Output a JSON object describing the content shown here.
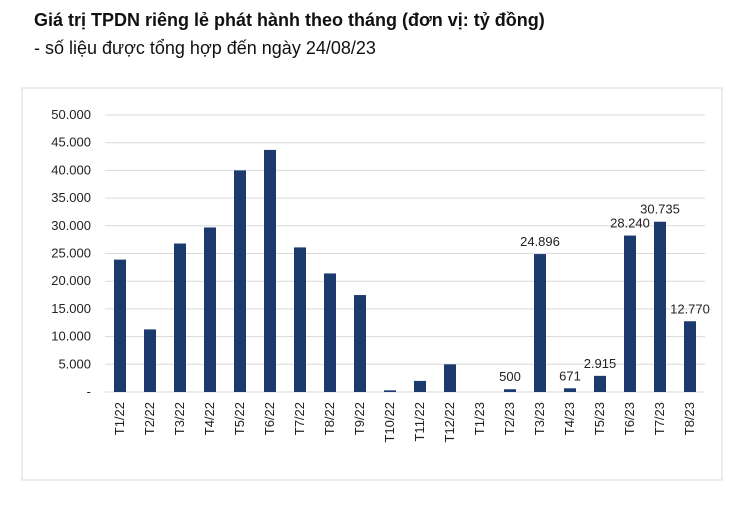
{
  "chart_data": {
    "type": "bar",
    "title": "Giá trị TPDN riêng lẻ phát hành theo tháng (đơn vị: tỷ đồng)",
    "subtitle": "- số liệu được tổng hợp đến ngày 24/08/23",
    "categories": [
      "T1/22",
      "T2/22",
      "T3/22",
      "T4/22",
      "T5/22",
      "T6/22",
      "T7/22",
      "T8/22",
      "T9/22",
      "T10/22",
      "T11/22",
      "T12/22",
      "T1/23",
      "T2/23",
      "T3/23",
      "T4/23",
      "T5/23",
      "T6/23",
      "T7/23",
      "T8/23"
    ],
    "values": [
      23900,
      11300,
      26800,
      29700,
      40000,
      43700,
      26100,
      21400,
      17500,
      300,
      2000,
      5000,
      0,
      500,
      24896,
      671,
      2915,
      28240,
      30735,
      12770
    ],
    "value_labels": [
      null,
      null,
      null,
      null,
      null,
      null,
      null,
      null,
      null,
      null,
      null,
      null,
      null,
      "500",
      "24.896",
      "671",
      "2.915",
      "28.240",
      "30.735",
      "12.770"
    ],
    "color": "#1c3a6e",
    "ylim": [
      0,
      50000
    ],
    "yticks": [
      {
        "value": 0,
        "label": "-"
      },
      {
        "value": 5000,
        "label": "5.000"
      },
      {
        "value": 10000,
        "label": "10.000"
      },
      {
        "value": 15000,
        "label": "15.000"
      },
      {
        "value": 20000,
        "label": "20.000"
      },
      {
        "value": 25000,
        "label": "25.000"
      },
      {
        "value": 30000,
        "label": "30.000"
      },
      {
        "value": 35000,
        "label": "35.000"
      },
      {
        "value": 40000,
        "label": "40.000"
      },
      {
        "value": 45000,
        "label": "45.000"
      },
      {
        "value": 50000,
        "label": "50.000"
      }
    ],
    "grid": true
  }
}
